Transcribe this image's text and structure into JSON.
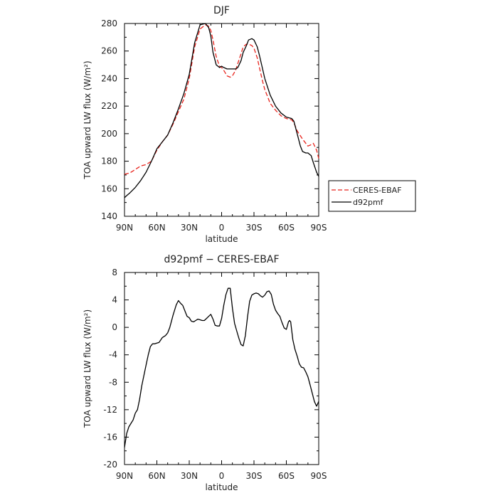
{
  "chart_data": [
    {
      "type": "line",
      "title": "DJF",
      "xlabel": "latitude",
      "ylabel": "TOA upward LW flux (W/m²)",
      "xlim": [
        -90,
        90
      ],
      "ylim": [
        140,
        280
      ],
      "x_ticks": [
        -90,
        -60,
        -30,
        0,
        30,
        60,
        90
      ],
      "x_tick_labels": [
        "90N",
        "60N",
        "30N",
        "0",
        "30S",
        "60S",
        "90S"
      ],
      "y_ticks": [
        140,
        160,
        180,
        200,
        220,
        240,
        260,
        280
      ],
      "legend_position": "right",
      "series": [
        {
          "name": "CERES-EBAF",
          "color": "#e8231c",
          "dash": "dashed",
          "x": [
            -90,
            -85,
            -80,
            -75,
            -70,
            -65,
            -60,
            -55,
            -50,
            -45,
            -40,
            -35,
            -30,
            -25,
            -20,
            -15,
            -12,
            -10,
            -8,
            -5,
            -2,
            0,
            2,
            5,
            8,
            10,
            13,
            15,
            18,
            20,
            23,
            25,
            28,
            30,
            33,
            35,
            38,
            40,
            45,
            50,
            55,
            60,
            65,
            67,
            70,
            75,
            80,
            83,
            85,
            88,
            90
          ],
          "y": [
            170.5,
            171.5,
            174,
            176.5,
            177.5,
            180,
            188,
            194,
            199,
            207,
            216,
            225,
            240,
            263,
            276,
            279,
            278,
            275,
            268,
            256,
            249,
            248,
            246,
            242,
            241,
            242,
            246,
            251,
            258,
            263,
            265,
            265,
            264,
            262,
            255,
            248,
            238,
            232,
            222,
            217,
            213,
            211,
            210,
            208,
            202,
            196,
            191,
            192,
            193,
            188,
            182
          ]
        },
        {
          "name": "d92pmf",
          "color": "#000000",
          "dash": "solid",
          "x": [
            -90,
            -88,
            -85,
            -80,
            -75,
            -70,
            -65,
            -60,
            -55,
            -50,
            -45,
            -40,
            -35,
            -30,
            -25,
            -20,
            -15,
            -12,
            -10,
            -8,
            -5,
            -2,
            0,
            2,
            5,
            8,
            10,
            13,
            15,
            18,
            20,
            23,
            25,
            28,
            30,
            33,
            35,
            38,
            40,
            45,
            50,
            55,
            60,
            65,
            67,
            70,
            73,
            75,
            78,
            80,
            83,
            85,
            88,
            90
          ],
          "y": [
            153.5,
            155,
            157,
            161,
            166,
            172,
            180,
            189,
            194,
            199,
            208,
            218,
            229,
            243,
            266,
            279,
            280,
            277,
            271,
            259,
            250,
            248,
            249,
            248,
            247,
            247,
            247,
            247,
            248,
            253,
            259,
            264,
            268,
            269,
            268,
            263,
            257,
            247,
            240,
            228,
            220,
            215,
            212,
            211,
            209,
            200,
            191,
            187,
            186,
            186,
            184,
            179,
            172,
            169
          ]
        }
      ]
    },
    {
      "type": "line",
      "title": "d92pmf − CERES-EBAF",
      "xlabel": "latitude",
      "ylabel": "TOA upward LW flux (W/m²)",
      "xlim": [
        -90,
        90
      ],
      "ylim": [
        -20,
        8
      ],
      "x_ticks": [
        -90,
        -60,
        -30,
        0,
        30,
        60,
        90
      ],
      "x_tick_labels": [
        "90N",
        "60N",
        "30N",
        "0",
        "30S",
        "60S",
        "90S"
      ],
      "y_ticks": [
        -20,
        -16,
        -12,
        -8,
        -4,
        0,
        4,
        8
      ],
      "series": [
        {
          "color": "#000000",
          "dash": "solid",
          "x": [
            -90,
            -89,
            -88,
            -86,
            -84,
            -82,
            -80,
            -78,
            -76,
            -74,
            -72,
            -70,
            -68,
            -66,
            -64,
            -62,
            -60,
            -58,
            -55,
            -52,
            -50,
            -48,
            -45,
            -42,
            -40,
            -38,
            -36,
            -34,
            -32,
            -30,
            -28,
            -26,
            -24,
            -22,
            -20,
            -18,
            -16,
            -14,
            -12,
            -10,
            -8,
            -6,
            -4,
            -2,
            0,
            2,
            4,
            6,
            8,
            10,
            12,
            14,
            16,
            18,
            20,
            22,
            24,
            26,
            28,
            30,
            32,
            34,
            36,
            38,
            40,
            42,
            44,
            46,
            48,
            50,
            52,
            54,
            56,
            58,
            60,
            62,
            63,
            64,
            65,
            66,
            68,
            70,
            72,
            74,
            76,
            78,
            80,
            82,
            84,
            86,
            88,
            90
          ],
          "y": [
            -17.5,
            -16.5,
            -15.5,
            -14.5,
            -14,
            -13.5,
            -12.5,
            -12,
            -10.5,
            -8.5,
            -7,
            -5.5,
            -4,
            -2.8,
            -2.4,
            -2.4,
            -2.3,
            -2.2,
            -1.5,
            -1.2,
            -0.8,
            0,
            1.8,
            3.3,
            3.9,
            3.5,
            3.2,
            2.4,
            1.6,
            1.4,
            0.9,
            0.8,
            1,
            1.2,
            1.1,
            1,
            1,
            1.3,
            1.6,
            1.9,
            1.2,
            0.3,
            0.2,
            0.2,
            1.3,
            3.2,
            4.8,
            5.7,
            5.7,
            2.8,
            0.6,
            -0.5,
            -1.6,
            -2.5,
            -2.7,
            -1.2,
            1.5,
            3.8,
            4.7,
            4.9,
            5,
            4.9,
            4.6,
            4.4,
            4.7,
            5.2,
            5.3,
            4.8,
            3.4,
            2.5,
            2,
            1.6,
            0.7,
            -0.1,
            -0.3,
            0.8,
            1,
            0.8,
            -0.5,
            -1.8,
            -3.2,
            -4.2,
            -5.3,
            -5.8,
            -5.9,
            -6.5,
            -7.2,
            -8.4,
            -9.6,
            -10.8,
            -11.5,
            -10.8
          ]
        }
      ]
    }
  ]
}
